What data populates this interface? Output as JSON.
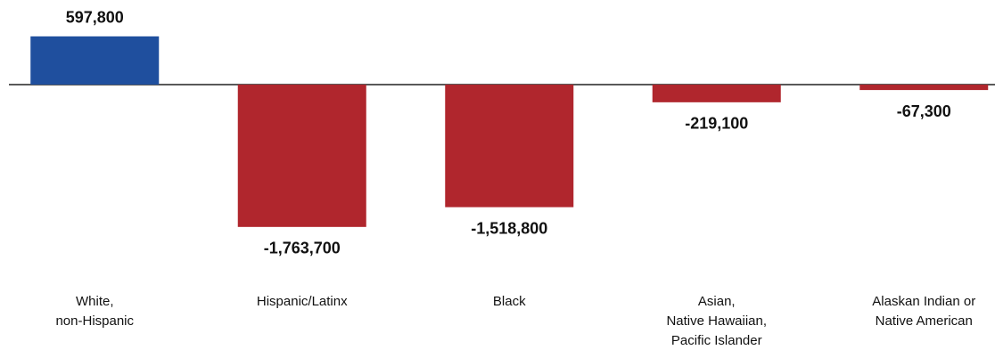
{
  "chart_data": {
    "type": "bar",
    "categories": [
      [
        "White,",
        "non-Hispanic"
      ],
      [
        "Hispanic/Latinx"
      ],
      [
        "Black"
      ],
      [
        "Asian,",
        "Native Hawaiian,",
        "Pacific Islander"
      ],
      [
        "Alaskan Indian or",
        "Native American"
      ]
    ],
    "values": [
      597800,
      -1763700,
      -1518800,
      -219100,
      -67300
    ],
    "value_labels": [
      "597,800",
      "-1,763,700",
      "-1,518,800",
      "-219,100",
      "-67,300"
    ],
    "colors": [
      "#1f4f9e",
      "#b0262d",
      "#b0262d",
      "#b0262d",
      "#b0262d"
    ]
  }
}
